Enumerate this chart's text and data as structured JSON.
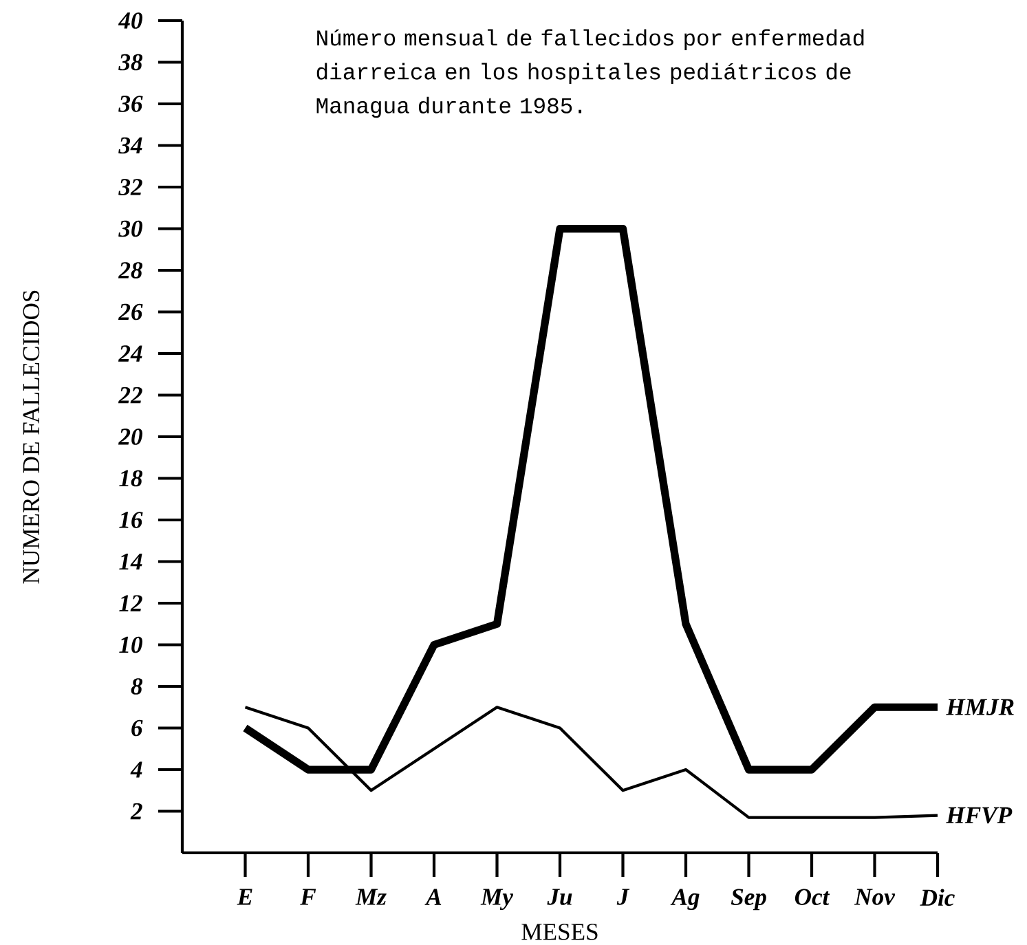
{
  "chart_data": {
    "type": "line",
    "title": "Número mensual de fallecidos por enfermedad diarreica en los hospitales pediátricos de Managua durante 1985.",
    "xlabel": "MESES",
    "ylabel": "NUMERO DE FALLECIDOS",
    "categories": [
      "E",
      "F",
      "Mz",
      "A",
      "My",
      "Ju",
      "J",
      "Ag",
      "Sep",
      "Oct",
      "Nov",
      "Dic"
    ],
    "series": [
      {
        "name": "HMJR",
        "color": "#000000",
        "values": [
          6,
          4,
          4,
          10,
          11,
          30,
          30,
          11,
          4,
          4,
          7,
          7
        ]
      },
      {
        "name": "HFVP",
        "color": "#000000",
        "values": [
          7,
          6,
          3,
          5,
          7,
          6,
          3,
          4,
          1.7,
          1.7,
          1.7,
          1.8
        ]
      }
    ],
    "ylim": [
      0,
      40
    ],
    "yticks": [
      2,
      4,
      6,
      8,
      10,
      12,
      14,
      16,
      18,
      20,
      22,
      24,
      26,
      28,
      30,
      32,
      34,
      36,
      38,
      40
    ],
    "grid": false,
    "legend": false,
    "marker": "none",
    "line_style": "solid"
  }
}
